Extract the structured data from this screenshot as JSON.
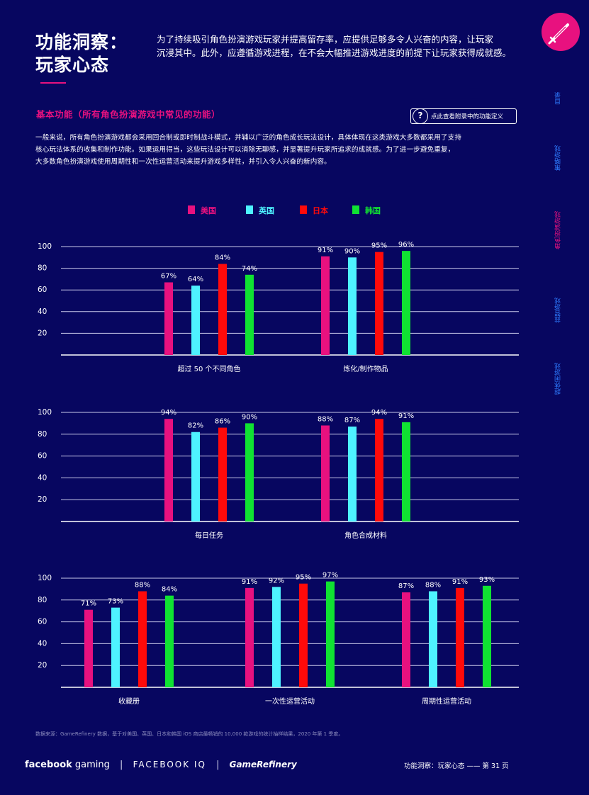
{
  "header": {
    "title_line1": "功能洞察：",
    "title_line2": "玩家心态",
    "intro_line1": "为了持续吸引角色扮演游戏玩家并提高留存率，应提供足够多令人兴奋的内容，让玩家",
    "intro_line2": "沉浸其中。此外，应遵循游戏进程，在不会大幅推进游戏进度的前提下让玩家获得成就感。",
    "badge_icon": "sword-icon"
  },
  "section": {
    "title": "基本功能（所有角色扮演游戏中常见的功能）",
    "glossary_icon": "?",
    "glossary_label": "点此查看附录中的功能定义",
    "body_line1": "一般来说，所有角色扮演游戏都会采用回合制或即时制战斗模式，并辅以广泛的角色成长玩法设计，具体体现在这类游戏大多数都采用了支持",
    "body_line2": "核心玩法体系的收集和制作功能。如果运用得当，这些玩法设计可以消除无聊感，并显著提升玩家所追求的成就感。为了进一步避免重复，",
    "body_line3": "大多数角色扮演游戏使用周期性和一次性运营活动来提升游戏多样性，并引入令人兴奋的新内容。"
  },
  "side_nav": {
    "items": [
      {
        "label": "目录",
        "active": false
      },
      {
        "label": "策略游戏",
        "active": false
      },
      {
        "label": "角色扮演游戏",
        "active": true
      },
      {
        "label": "益智游戏",
        "active": false
      },
      {
        "label": "超休闲游戏",
        "active": false
      }
    ],
    "active_color": "#e8117f",
    "inactive_color": "#2e7bff"
  },
  "legend": [
    {
      "name": "美国",
      "color": "#e8117f"
    },
    {
      "name": "英国",
      "color": "#4ef2ff"
    },
    {
      "name": "日本",
      "color": "#ff0a0a"
    },
    {
      "name": "韩国",
      "color": "#10e232"
    }
  ],
  "chart_data": [
    {
      "type": "bar",
      "categories": [
        "超过 50 个不同角色",
        "炼化/制作物品"
      ],
      "series": [
        {
          "name": "美国",
          "values": [
            67,
            91
          ]
        },
        {
          "name": "英国",
          "values": [
            64,
            90
          ]
        },
        {
          "name": "日本",
          "values": [
            84,
            95
          ]
        },
        {
          "name": "韩国",
          "values": [
            74,
            96
          ]
        }
      ],
      "yticks": [
        20,
        40,
        60,
        80,
        100
      ],
      "ylim": [
        0,
        100
      ],
      "value_suffix": "%"
    },
    {
      "type": "bar",
      "categories": [
        "每日任务",
        "角色合成材料"
      ],
      "series": [
        {
          "name": "美国",
          "values": [
            94,
            88
          ]
        },
        {
          "name": "英国",
          "values": [
            82,
            87
          ]
        },
        {
          "name": "日本",
          "values": [
            86,
            94
          ]
        },
        {
          "name": "韩国",
          "values": [
            90,
            91
          ]
        }
      ],
      "yticks": [
        20,
        40,
        60,
        80,
        100
      ],
      "ylim": [
        0,
        100
      ],
      "value_suffix": "%"
    },
    {
      "type": "bar",
      "categories": [
        "收藏册",
        "一次性运营活动",
        "周期性运营活动"
      ],
      "series": [
        {
          "name": "美国",
          "values": [
            71,
            91,
            87
          ]
        },
        {
          "name": "英国",
          "values": [
            73,
            92,
            88
          ]
        },
        {
          "name": "日本",
          "values": [
            88,
            95,
            91
          ]
        },
        {
          "name": "韩国",
          "values": [
            84,
            97,
            93
          ]
        }
      ],
      "yticks": [
        20,
        40,
        60,
        80,
        100
      ],
      "ylim": [
        0,
        100
      ],
      "value_suffix": "%"
    }
  ],
  "source_note": "数据来源：GameRefinery 数据，基于对美国、英国、日本和韩国 iOS 商店最畅销的 10,000 款游戏的统计抽样结果，2020 年第 1 季度。",
  "footer": {
    "brand_facebook": "facebook",
    "brand_gaming": "gaming",
    "brand_iq": "FACEBOOK IQ",
    "brand_gr": "GameRefinery",
    "separator": "|",
    "page_label": "功能洞察：玩家心态 —— 第 31 页"
  }
}
